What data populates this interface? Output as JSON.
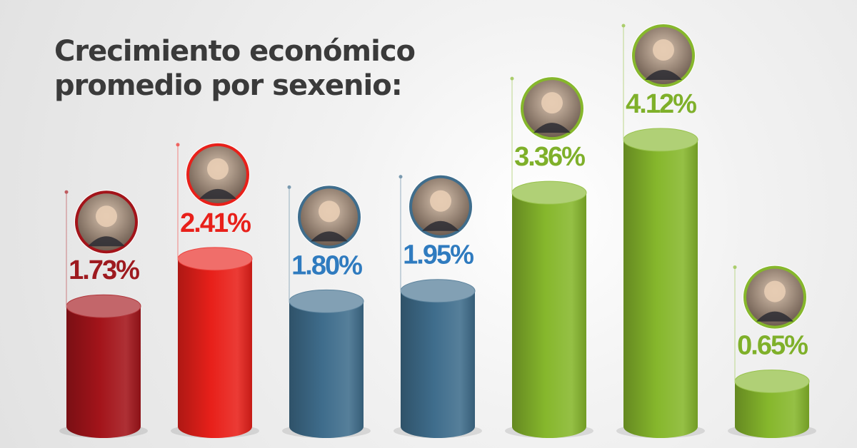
{
  "title": {
    "line1": "Crecimiento económico",
    "line2": "promedio por sexenio:"
  },
  "colors": {
    "dark_red": "#a3141a",
    "red": "#e8201a",
    "blue": "#3f6d8c",
    "green": "#86b72c",
    "title": "#3a3a3a"
  },
  "chart_data": {
    "type": "bar",
    "style": "3d-cylinder",
    "title": "Crecimiento económico promedio por sexenio:",
    "xlabel": "",
    "ylabel": "",
    "grid": false,
    "legend": "none",
    "categories": [
      "",
      "",
      "",
      "",
      "",
      "",
      ""
    ],
    "values": [
      1.73,
      2.41,
      1.8,
      1.95,
      3.36,
      4.12,
      0.65
    ],
    "labels": [
      "1.73%",
      "2.41%",
      "1.80%",
      "1.95%",
      "3.36%",
      "4.12%",
      "0.65%"
    ],
    "bar_colors": [
      "#a3141a",
      "#e8201a",
      "#3f6d8c",
      "#3f6d8c",
      "#86b72c",
      "#86b72c",
      "#86b72c"
    ],
    "label_colors": [
      "#9e1a1f",
      "#e8201a",
      "#2f7bbf",
      "#2f7bbf",
      "#7fb02a",
      "#7fb02a",
      "#7fb02a"
    ],
    "portrait_icons": [
      "portrait-icon",
      "portrait-icon",
      "portrait-icon",
      "portrait-icon",
      "portrait-icon",
      "portrait-icon",
      "portrait-icon"
    ]
  }
}
